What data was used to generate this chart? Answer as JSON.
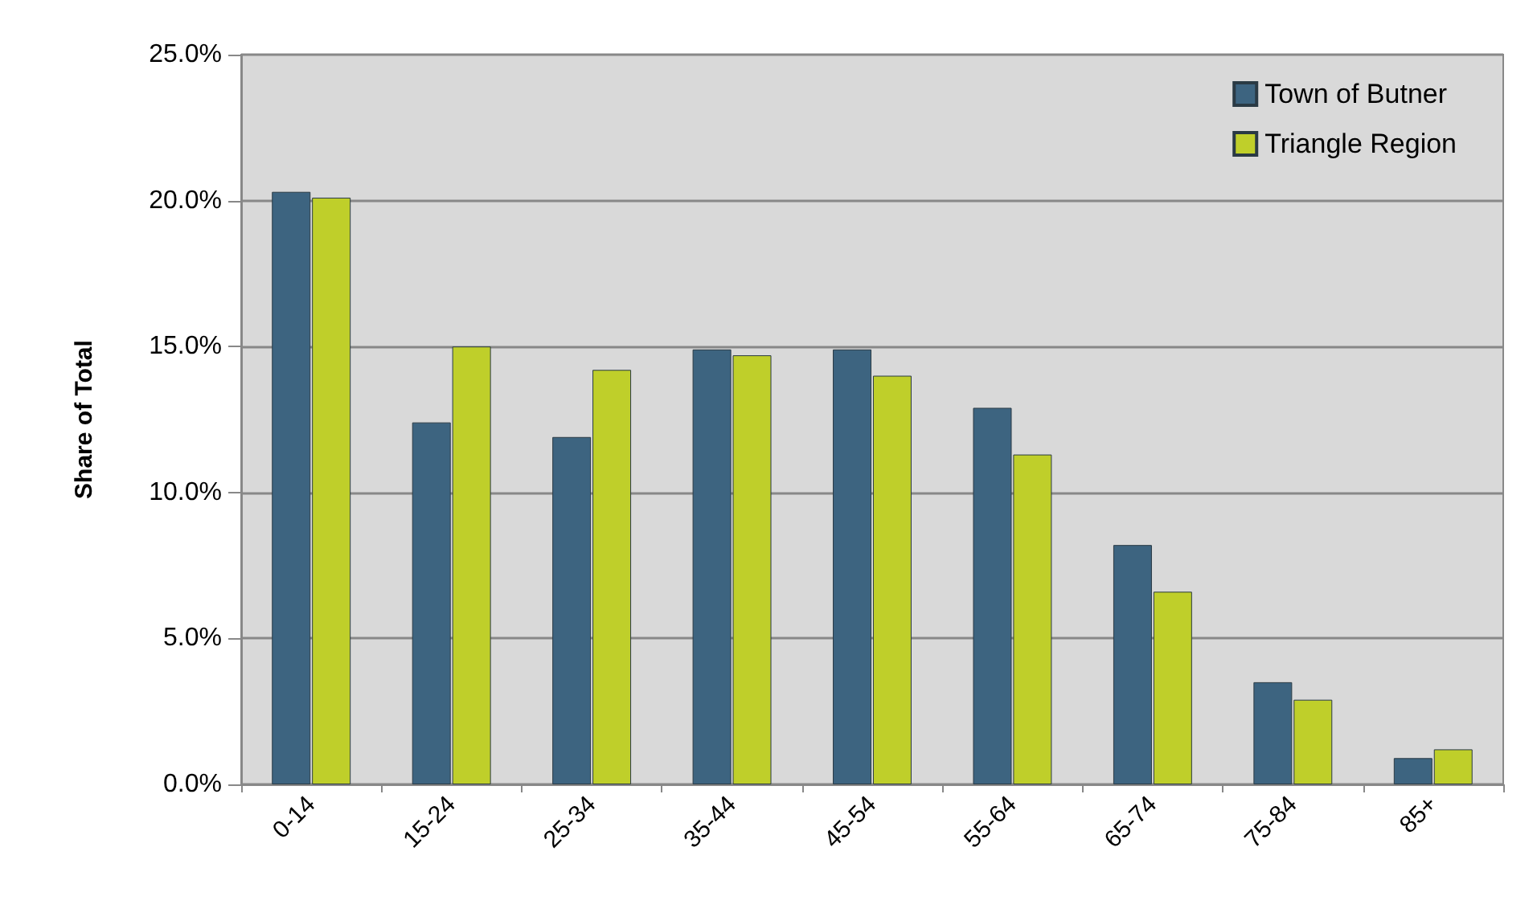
{
  "chart_data": {
    "type": "bar",
    "ylabel": "Share of Total",
    "categories": [
      "0-14",
      "15-24",
      "25-34",
      "35-44",
      "45-54",
      "55-64",
      "65-74",
      "75-84",
      "85+"
    ],
    "series": [
      {
        "name": "Town of Butner",
        "color": "#3d6480",
        "values": [
          20.3,
          12.4,
          11.9,
          14.9,
          14.9,
          12.9,
          8.2,
          3.5,
          0.9
        ]
      },
      {
        "name": "Triangle Region",
        "color": "#bfcf2a",
        "values": [
          20.1,
          15.0,
          14.2,
          14.7,
          14.0,
          11.3,
          6.6,
          2.9,
          1.2
        ]
      }
    ],
    "ylim": [
      0,
      25
    ],
    "yticks": [
      {
        "value": 0,
        "label": "0.0%"
      },
      {
        "value": 5,
        "label": "5.0%"
      },
      {
        "value": 10,
        "label": "10.0%"
      },
      {
        "value": 15,
        "label": "15.0%"
      },
      {
        "value": 20,
        "label": "20.0%"
      },
      {
        "value": 25,
        "label": "25.0%"
      }
    ],
    "grid": "y",
    "legend": "top right"
  }
}
